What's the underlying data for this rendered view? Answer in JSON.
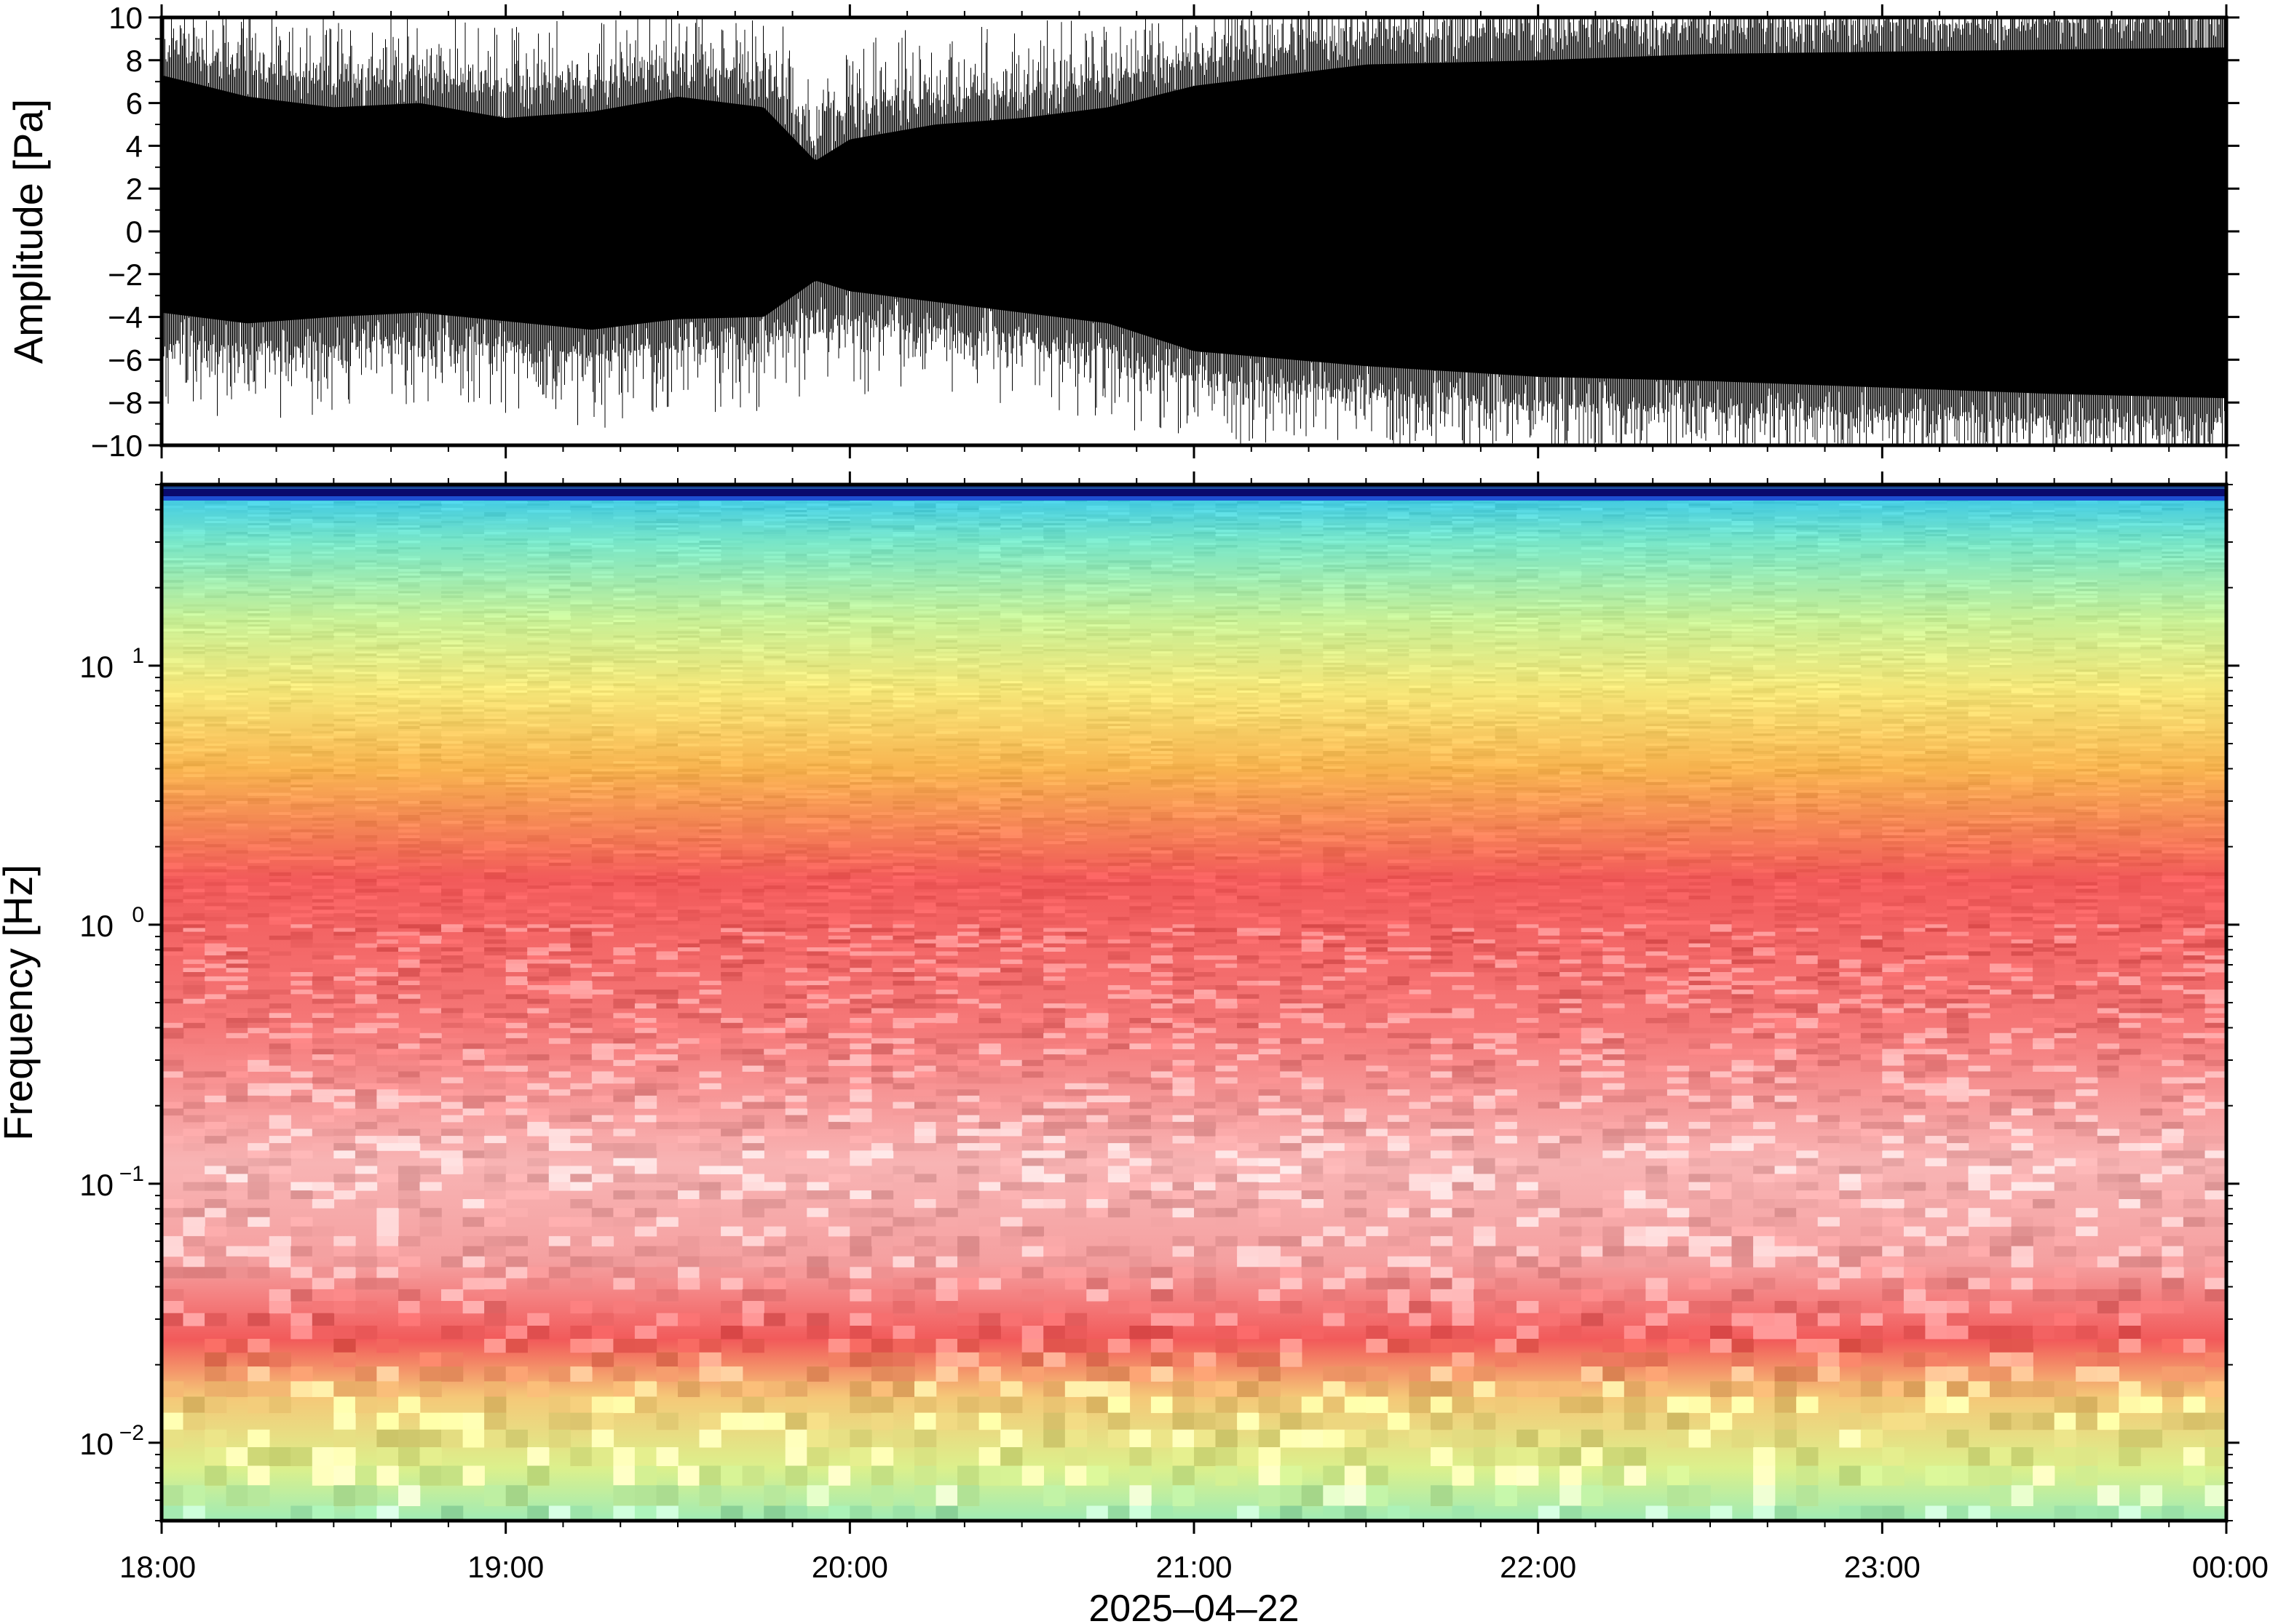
{
  "chart_data": [
    {
      "type": "line",
      "ylabel": "Amplitude [Pa]",
      "ylim": [
        -10,
        10
      ],
      "yticks": [
        "10",
        "8",
        "6",
        "4",
        "2",
        "0",
        "−2",
        "−4",
        "−6",
        "−8",
        "−10"
      ],
      "ytick_values": [
        10,
        8,
        6,
        4,
        2,
        0,
        -2,
        -4,
        -6,
        -8,
        -10
      ],
      "xlim": [
        "18:00",
        "00:00"
      ],
      "series_color": "#000000",
      "envelope": {
        "x_hours": [
          18.0,
          18.25,
          18.5,
          18.75,
          19.0,
          19.25,
          19.5,
          19.75,
          19.9,
          20.0,
          20.25,
          20.5,
          20.75,
          21.0,
          21.5,
          22.0,
          22.5,
          23.0,
          23.5,
          24.0
        ],
        "upper": [
          8.5,
          7.5,
          7.0,
          7.2,
          6.5,
          6.8,
          7.5,
          7.0,
          4.5,
          5.5,
          6.2,
          6.5,
          7.0,
          8.0,
          9.0,
          9.2,
          9.5,
          9.6,
          9.7,
          9.8
        ],
        "lower": [
          -5.0,
          -5.5,
          -5.2,
          -5.0,
          -5.4,
          -5.8,
          -5.3,
          -5.2,
          -3.5,
          -4.0,
          -4.5,
          -5.0,
          -5.5,
          -6.8,
          -7.5,
          -8.0,
          -8.2,
          -8.5,
          -8.8,
          -9.0
        ]
      }
    },
    {
      "type": "heatmap",
      "ylabel": "Frequency [Hz]",
      "xlabel": "2025‒04‒22",
      "yscale": "log",
      "ylim": [
        0.005,
        50
      ],
      "yticks": [
        {
          "value": 10,
          "base": "10",
          "exp": "1"
        },
        {
          "value": 1,
          "base": "10",
          "exp": "0"
        },
        {
          "value": 0.1,
          "base": "10",
          "exp": "−1"
        },
        {
          "value": 0.01,
          "base": "10",
          "exp": "−2"
        }
      ],
      "xticks": [
        "18:00",
        "19:00",
        "20:00",
        "21:00",
        "22:00",
        "23:00",
        "00:00"
      ],
      "xtick_hours": [
        18,
        19,
        20,
        21,
        22,
        23,
        24
      ],
      "colormap": [
        "#0a0a6e",
        "#1e50d2",
        "#3cc8e6",
        "#78e6c8",
        "#c8f096",
        "#f5e678",
        "#f8b450",
        "#f57850",
        "#f25a5a",
        "#f5a0a0",
        "#fbe6e6"
      ],
      "profile": [
        {
          "freq_hz": 50,
          "color": "#0a0a6e"
        },
        {
          "freq_hz": 46,
          "color": "#3cc8e6"
        },
        {
          "freq_hz": 30,
          "color": "#78e6c8"
        },
        {
          "freq_hz": 15,
          "color": "#c8f096"
        },
        {
          "freq_hz": 8,
          "color": "#f5e678"
        },
        {
          "freq_hz": 4,
          "color": "#f8b450"
        },
        {
          "freq_hz": 1.5,
          "color": "#f25a5a"
        },
        {
          "freq_hz": 0.4,
          "color": "#f57878"
        },
        {
          "freq_hz": 0.12,
          "color": "#f8b4b4"
        },
        {
          "freq_hz": 0.05,
          "color": "#f5a0a0"
        },
        {
          "freq_hz": 0.025,
          "color": "#f25a5a"
        },
        {
          "freq_hz": 0.015,
          "color": "#f5c878"
        },
        {
          "freq_hz": 0.008,
          "color": "#dcf08c"
        },
        {
          "freq_hz": 0.005,
          "color": "#a0ebb4"
        }
      ]
    }
  ]
}
